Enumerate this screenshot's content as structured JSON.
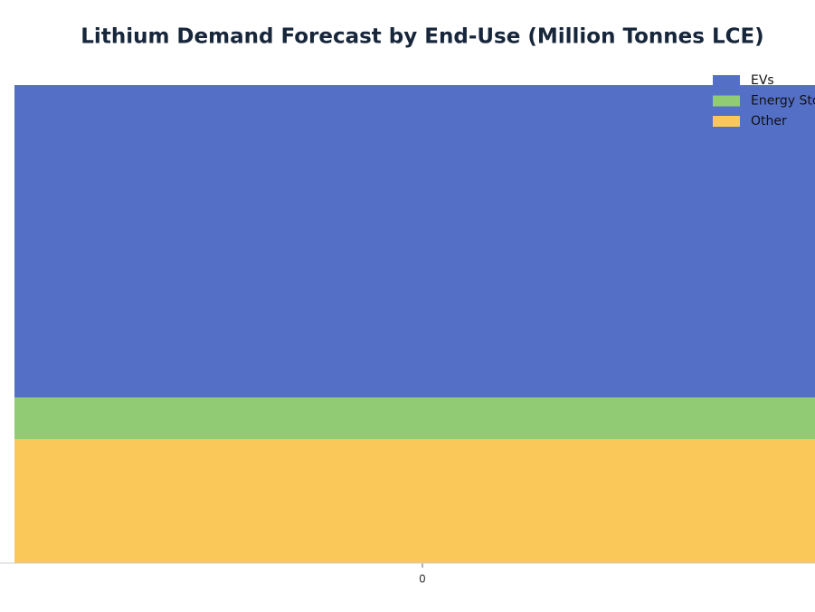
{
  "chart_data": {
    "type": "stacked_bar",
    "title": "Lithium Demand Forecast by End-Use (Million Tonnes LCE)",
    "categories": [
      "0"
    ],
    "series": [
      {
        "name": "EVs",
        "color": "#5470c6",
        "values": [
          1.725
        ]
      },
      {
        "name": "Energy Storage",
        "color": "#91cc75",
        "values": [
          0.23
        ]
      },
      {
        "name": "Other",
        "color": "#fac858",
        "values": [
          0.685
        ]
      }
    ],
    "ylim": [
      0,
      2.64
    ],
    "grid": false,
    "legend": "top-right"
  }
}
